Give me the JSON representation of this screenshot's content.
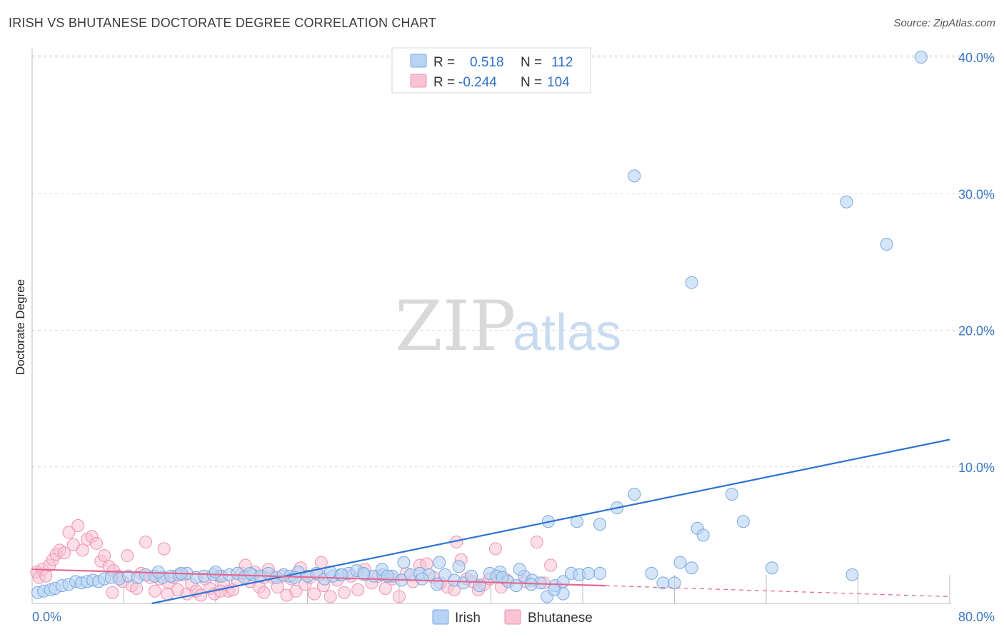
{
  "title": "IRISH VS BHUTANESE DOCTORATE DEGREE CORRELATION CHART",
  "source": "Source: ZipAtlas.com",
  "watermark": {
    "part1": "ZIP",
    "part2": "atlas"
  },
  "colors": {
    "irish_fill": "#b8d3f4",
    "irish_stroke": "#7aa8e0",
    "irish_line": "#2e73d4",
    "bhutanese_fill": "#f8c3d3",
    "bhutanese_stroke": "#ee93b1",
    "bhutanese_line": "#e8668f",
    "grid": "#dcdcdc",
    "tick_text": "#3b78c3"
  },
  "legend": {
    "rows": [
      {
        "r_label": "R =",
        "r_value": "0.518",
        "n_label": "N =",
        "n_value": "112"
      },
      {
        "r_label": "R =",
        "r_value": "-0.244",
        "n_label": "N =",
        "n_value": "104"
      }
    ]
  },
  "bottom_legend": {
    "irish": "Irish",
    "bhutanese": "Bhutanese"
  },
  "chart_data": {
    "type": "scatter",
    "title": "IRISH VS BHUTANESE DOCTORATE DEGREE CORRELATION CHART",
    "xlabel": "",
    "ylabel": "Doctorate Degree",
    "xlim": [
      0,
      80
    ],
    "ylim": [
      0,
      41
    ],
    "x_tick_labels": [
      "0.0%",
      "80.0%"
    ],
    "y_ticks": [
      10,
      20,
      30,
      40
    ],
    "y_tick_labels": [
      "10.0%",
      "20.0%",
      "30.0%",
      "40.0%"
    ],
    "grid": true,
    "series": [
      {
        "name": "Irish",
        "r": 0.518,
        "n": 112,
        "trend": {
          "x": [
            0,
            80
          ],
          "y": [
            -1.8,
            12.0
          ]
        },
        "points": [
          [
            0.5,
            0.8
          ],
          [
            1.0,
            0.9
          ],
          [
            1.6,
            1.0
          ],
          [
            2.0,
            1.1
          ],
          [
            2.6,
            1.3
          ],
          [
            3.2,
            1.4
          ],
          [
            3.8,
            1.6
          ],
          [
            4.3,
            1.5
          ],
          [
            4.8,
            1.6
          ],
          [
            5.3,
            1.7
          ],
          [
            5.8,
            1.6
          ],
          [
            6.3,
            1.8
          ],
          [
            6.9,
            1.9
          ],
          [
            7.6,
            1.8
          ],
          [
            8.4,
            2.0
          ],
          [
            9.2,
            1.9
          ],
          [
            9.9,
            2.1
          ],
          [
            10.7,
            2.0
          ],
          [
            11.4,
            1.9
          ],
          [
            12.1,
            2.0
          ],
          [
            12.8,
            2.1
          ],
          [
            13.5,
            2.2
          ],
          [
            14.3,
            1.9
          ],
          [
            15.0,
            2.0
          ],
          [
            15.8,
            2.1
          ],
          [
            16.5,
            2.0
          ],
          [
            17.2,
            2.1
          ],
          [
            17.9,
            2.2
          ],
          [
            18.5,
            1.9
          ],
          [
            19.2,
            2.1
          ],
          [
            19.9,
            2.0
          ],
          [
            20.6,
            2.2
          ],
          [
            21.3,
            1.9
          ],
          [
            21.9,
            2.1
          ],
          [
            22.5,
            2.0
          ],
          [
            23.2,
            2.3
          ],
          [
            24.0,
            2.0
          ],
          [
            24.8,
            2.2
          ],
          [
            25.5,
            1.8
          ],
          [
            26.2,
            2.0
          ],
          [
            26.9,
            2.1
          ],
          [
            27.6,
            2.2
          ],
          [
            28.3,
            2.4
          ],
          [
            29.0,
            2.1
          ],
          [
            29.8,
            2.0
          ],
          [
            30.6,
            2.1
          ],
          [
            31.4,
            2.0
          ],
          [
            32.2,
            1.7
          ],
          [
            33.0,
            2.1
          ],
          [
            33.8,
            2.2
          ],
          [
            34.6,
            2.1
          ],
          [
            35.3,
            1.4
          ],
          [
            36.0,
            2.1
          ],
          [
            36.8,
            1.7
          ],
          [
            37.6,
            1.5
          ],
          [
            38.3,
            2.0
          ],
          [
            39.0,
            1.3
          ],
          [
            39.9,
            2.2
          ],
          [
            40.8,
            2.3
          ],
          [
            41.5,
            1.6
          ],
          [
            42.2,
            1.3
          ],
          [
            42.9,
            2.0
          ],
          [
            43.6,
            1.7
          ],
          [
            44.3,
            1.5
          ],
          [
            44.9,
            0.5
          ],
          [
            45.6,
            1.3
          ],
          [
            46.3,
            1.6
          ],
          [
            47.0,
            2.2
          ],
          [
            47.7,
            2.1
          ],
          [
            42.5,
            2.5
          ],
          [
            40.5,
            2.0
          ],
          [
            37.2,
            2.7
          ],
          [
            35.5,
            3.0
          ],
          [
            32.4,
            3.0
          ],
          [
            30.5,
            2.5
          ],
          [
            28.9,
            2.2
          ],
          [
            26.0,
            2.3
          ],
          [
            22.9,
            1.9
          ],
          [
            19.0,
            2.2
          ],
          [
            16.0,
            2.3
          ],
          [
            13.0,
            2.2
          ],
          [
            11.0,
            2.3
          ],
          [
            45.0,
            6.0
          ],
          [
            47.5,
            6.0
          ],
          [
            49.5,
            5.8
          ],
          [
            51.0,
            7.0
          ],
          [
            52.5,
            8.0
          ],
          [
            54.0,
            2.2
          ],
          [
            55.0,
            1.5
          ],
          [
            56.5,
            3.0
          ],
          [
            57.5,
            2.6
          ],
          [
            58.0,
            5.5
          ],
          [
            58.5,
            5.0
          ],
          [
            61.0,
            8.0
          ],
          [
            62.0,
            6.0
          ],
          [
            64.5,
            2.6
          ],
          [
            71.5,
            2.1
          ],
          [
            52.5,
            31.3
          ],
          [
            57.5,
            23.5
          ],
          [
            71.0,
            29.4
          ],
          [
            74.5,
            26.3
          ],
          [
            77.5,
            40.0
          ],
          [
            49.5,
            2.2
          ],
          [
            48.5,
            2.2
          ],
          [
            46.3,
            0.7
          ],
          [
            43.5,
            1.4
          ],
          [
            41.0,
            1.9
          ],
          [
            34.0,
            1.8
          ],
          [
            31.0,
            2.0
          ],
          [
            27.0,
            2.1
          ],
          [
            45.5,
            1.0
          ],
          [
            56.0,
            1.5
          ]
        ]
      },
      {
        "name": "Bhutanese",
        "r": -0.244,
        "n": 104,
        "trend": {
          "x": [
            0,
            50
          ],
          "y": [
            2.5,
            1.3
          ]
        },
        "trend_dashed": {
          "x": [
            50,
            80
          ],
          "y": [
            1.3,
            0.5
          ]
        },
        "points": [
          [
            0.4,
            2.3
          ],
          [
            0.6,
            1.9
          ],
          [
            0.9,
            2.5
          ],
          [
            1.2,
            2.0
          ],
          [
            1.5,
            2.8
          ],
          [
            1.8,
            3.2
          ],
          [
            2.1,
            3.6
          ],
          [
            2.4,
            3.9
          ],
          [
            2.8,
            3.7
          ],
          [
            3.2,
            5.2
          ],
          [
            3.6,
            4.3
          ],
          [
            4.0,
            5.7
          ],
          [
            4.4,
            3.9
          ],
          [
            4.8,
            4.7
          ],
          [
            5.2,
            4.9
          ],
          [
            5.6,
            4.4
          ],
          [
            6.0,
            3.1
          ],
          [
            6.3,
            3.5
          ],
          [
            6.7,
            2.7
          ],
          [
            7.1,
            2.4
          ],
          [
            7.5,
            2.0
          ],
          [
            7.9,
            1.6
          ],
          [
            8.3,
            3.5
          ],
          [
            8.7,
            1.3
          ],
          [
            9.1,
            1.1
          ],
          [
            9.5,
            2.2
          ],
          [
            9.9,
            4.5
          ],
          [
            10.3,
            1.9
          ],
          [
            10.7,
            0.9
          ],
          [
            11.1,
            1.8
          ],
          [
            11.5,
            4.0
          ],
          [
            11.9,
            1.5
          ],
          [
            12.3,
            1.9
          ],
          [
            12.7,
            1.0
          ],
          [
            13.1,
            2.1
          ],
          [
            13.5,
            0.7
          ],
          [
            13.9,
            1.4
          ],
          [
            14.3,
            0.9
          ],
          [
            14.7,
            0.6
          ],
          [
            15.1,
            1.8
          ],
          [
            15.5,
            1.1
          ],
          [
            15.9,
            0.7
          ],
          [
            16.3,
            2.0
          ],
          [
            16.7,
            1.4
          ],
          [
            17.1,
            0.9
          ],
          [
            17.5,
            1.0
          ],
          [
            17.9,
            1.7
          ],
          [
            18.3,
            2.2
          ],
          [
            18.6,
            2.8
          ],
          [
            19.0,
            1.6
          ],
          [
            19.4,
            2.3
          ],
          [
            19.8,
            1.2
          ],
          [
            20.2,
            0.8
          ],
          [
            20.6,
            2.5
          ],
          [
            21.0,
            1.9
          ],
          [
            21.4,
            1.2
          ],
          [
            21.8,
            2.0
          ],
          [
            22.2,
            0.6
          ],
          [
            22.6,
            1.8
          ],
          [
            23.0,
            0.9
          ],
          [
            23.4,
            2.6
          ],
          [
            23.8,
            1.4
          ],
          [
            24.2,
            1.9
          ],
          [
            24.6,
            0.7
          ],
          [
            25.0,
            2.1
          ],
          [
            25.4,
            1.3
          ],
          [
            26.0,
            0.5
          ],
          [
            26.6,
            1.7
          ],
          [
            27.2,
            0.8
          ],
          [
            27.8,
            2.0
          ],
          [
            28.4,
            1.0
          ],
          [
            29.0,
            2.5
          ],
          [
            29.6,
            1.5
          ],
          [
            30.2,
            2.0
          ],
          [
            30.8,
            1.1
          ],
          [
            31.4,
            1.8
          ],
          [
            32.0,
            0.5
          ],
          [
            32.6,
            2.2
          ],
          [
            33.2,
            1.6
          ],
          [
            33.8,
            2.8
          ],
          [
            34.4,
            2.9
          ],
          [
            35.0,
            1.9
          ],
          [
            35.6,
            1.5
          ],
          [
            36.2,
            1.2
          ],
          [
            36.8,
            1.0
          ],
          [
            37.4,
            3.2
          ],
          [
            37.9,
            1.8
          ],
          [
            38.4,
            1.6
          ],
          [
            38.9,
            1.0
          ],
          [
            39.4,
            1.4
          ],
          [
            39.9,
            1.8
          ],
          [
            40.4,
            4.0
          ],
          [
            40.9,
            1.2
          ],
          [
            41.4,
            1.7
          ],
          [
            43.0,
            1.6
          ],
          [
            44.0,
            4.5
          ],
          [
            44.6,
            1.5
          ],
          [
            45.2,
            2.8
          ],
          [
            37.0,
            4.5
          ],
          [
            25.2,
            3.0
          ],
          [
            20.2,
            1.9
          ],
          [
            16.4,
            0.9
          ],
          [
            11.8,
            0.7
          ],
          [
            7.0,
            0.8
          ]
        ]
      }
    ]
  }
}
